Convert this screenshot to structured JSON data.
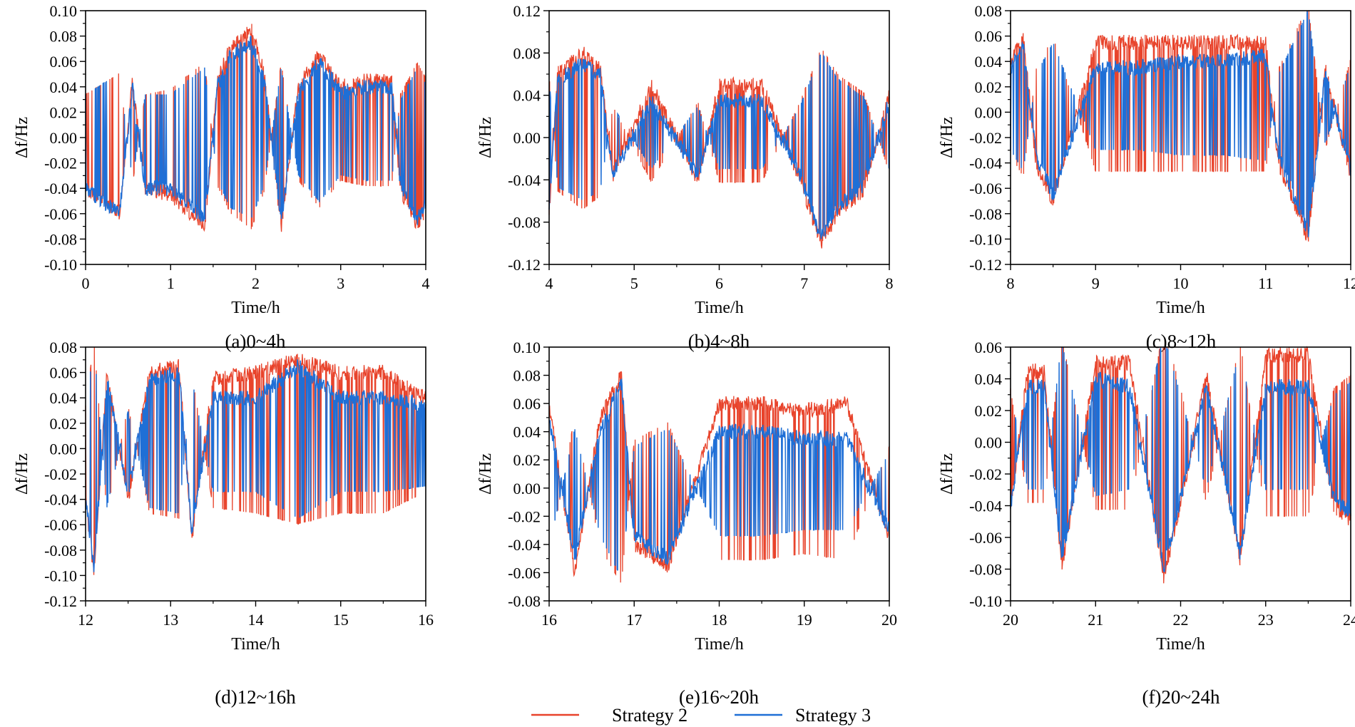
{
  "figure": {
    "legend": [
      {
        "label": "Strategy 2",
        "color": "#e8432b"
      },
      {
        "label": "Strategy 3",
        "color": "#1f6fd6"
      }
    ]
  },
  "chart_data": [
    {
      "type": "line",
      "caption": "(a)0~4h",
      "xlabel": "Time/h",
      "ylabel": "Δf/Hz",
      "xlim": [
        0,
        4
      ],
      "ylim": [
        -0.1,
        0.1
      ],
      "xticks": [
        "0",
        "1",
        "2",
        "3",
        "4"
      ],
      "yticks": [
        "-0.10",
        "-0.08",
        "-0.06",
        "-0.04",
        "-0.02",
        "0.00",
        "0.02",
        "0.04",
        "0.06",
        "0.08",
        "0.10"
      ],
      "series": [
        {
          "name": "Strategy 2",
          "color": "#e8432b",
          "x": [
            0,
            0.4,
            0.55,
            0.7,
            1.0,
            1.4,
            1.55,
            1.7,
            1.95,
            2.1,
            2.3,
            2.5,
            2.75,
            3.0,
            3.3,
            3.6,
            3.7,
            3.9,
            4.0
          ],
          "values": [
            -0.04,
            -0.06,
            0.045,
            -0.04,
            -0.045,
            -0.07,
            0.045,
            0.07,
            0.085,
            0.05,
            -0.07,
            0.04,
            0.065,
            0.04,
            0.045,
            0.045,
            -0.04,
            -0.07,
            -0.055
          ]
        },
        {
          "name": "Strategy 3",
          "color": "#1f6fd6",
          "x": [
            0,
            0.4,
            0.55,
            0.7,
            1.0,
            1.4,
            1.55,
            1.7,
            1.95,
            2.1,
            2.3,
            2.5,
            2.75,
            3.0,
            3.3,
            3.6,
            3.7,
            3.9,
            4.0
          ],
          "values": [
            -0.04,
            -0.06,
            0.04,
            -0.04,
            -0.04,
            -0.065,
            0.04,
            0.065,
            0.075,
            0.045,
            -0.065,
            0.035,
            0.06,
            0.035,
            0.04,
            0.04,
            -0.035,
            -0.065,
            -0.05
          ]
        }
      ]
    },
    {
      "type": "line",
      "caption": "(b)4~8h",
      "xlabel": "Time/h",
      "ylabel": "Δf/Hz",
      "xlim": [
        4,
        8
      ],
      "ylim": [
        -0.12,
        0.12
      ],
      "xticks": [
        "4",
        "5",
        "6",
        "7",
        "8"
      ],
      "yticks": [
        "-0.12",
        "-0.08",
        "-0.04",
        "0.00",
        "0.04",
        "0.08",
        "0.12"
      ],
      "series": [
        {
          "name": "Strategy 2",
          "color": "#e8432b",
          "x": [
            4.0,
            4.1,
            4.4,
            4.6,
            4.75,
            5.2,
            5.75,
            6.0,
            6.5,
            6.95,
            7.2,
            7.4,
            7.7,
            8.0
          ],
          "values": [
            -0.07,
            0.06,
            0.08,
            0.065,
            -0.035,
            0.05,
            -0.04,
            0.05,
            0.05,
            -0.04,
            -0.1,
            -0.07,
            -0.05,
            0.04
          ]
        },
        {
          "name": "Strategy 3",
          "color": "#1f6fd6",
          "x": [
            4.0,
            4.1,
            4.4,
            4.6,
            4.75,
            5.2,
            5.75,
            6.0,
            6.5,
            6.95,
            7.2,
            7.4,
            7.7,
            8.0
          ],
          "values": [
            -0.065,
            0.055,
            0.07,
            0.06,
            -0.035,
            0.035,
            -0.035,
            0.035,
            0.035,
            -0.035,
            -0.095,
            -0.065,
            -0.045,
            0.035
          ]
        }
      ]
    },
    {
      "type": "line",
      "caption": "(c)8~12h",
      "xlabel": "Time/h",
      "ylabel": "Δf/Hz",
      "xlim": [
        8,
        12
      ],
      "ylim": [
        -0.12,
        0.08
      ],
      "xticks": [
        "8",
        "9",
        "10",
        "11",
        "12"
      ],
      "yticks": [
        "-0.12",
        "-0.10",
        "-0.08",
        "-0.06",
        "-0.04",
        "-0.02",
        "0.00",
        "0.02",
        "0.04",
        "0.06",
        "0.08"
      ],
      "series": [
        {
          "name": "Strategy 2",
          "color": "#e8432b",
          "x": [
            8.0,
            8.15,
            8.3,
            8.5,
            9.0,
            9.5,
            10.0,
            10.5,
            11.0,
            11.15,
            11.5,
            11.7,
            12.0
          ],
          "values": [
            0.04,
            0.06,
            -0.04,
            -0.07,
            0.055,
            0.055,
            0.055,
            0.055,
            0.055,
            -0.04,
            -0.1,
            0.035,
            -0.05
          ]
        },
        {
          "name": "Strategy 3",
          "color": "#1f6fd6",
          "x": [
            8.0,
            8.15,
            8.3,
            8.5,
            9.0,
            9.5,
            10.0,
            10.5,
            11.0,
            11.15,
            11.5,
            11.7,
            12.0
          ],
          "values": [
            0.035,
            0.055,
            -0.035,
            -0.065,
            0.035,
            0.035,
            0.04,
            0.04,
            0.045,
            -0.035,
            -0.095,
            0.03,
            -0.045
          ]
        }
      ]
    },
    {
      "type": "line",
      "caption": "(d)12~16h",
      "xlabel": "Time/h",
      "ylabel": "Δf/Hz",
      "xlim": [
        12,
        16
      ],
      "ylim": [
        -0.12,
        0.08
      ],
      "xticks": [
        "12",
        "13",
        "14",
        "15",
        "16"
      ],
      "yticks": [
        "-0.12",
        "-0.10",
        "-0.08",
        "-0.06",
        "-0.04",
        "-0.02",
        "0.00",
        "0.02",
        "0.04",
        "0.06",
        "0.08"
      ],
      "series": [
        {
          "name": "Strategy 2",
          "color": "#e8432b",
          "x": [
            12.0,
            12.1,
            12.25,
            12.5,
            12.75,
            13.1,
            13.25,
            13.5,
            14.0,
            14.5,
            15.0,
            15.5,
            16.0
          ],
          "values": [
            -0.04,
            -0.1,
            0.06,
            -0.04,
            0.06,
            0.065,
            -0.07,
            0.055,
            0.06,
            0.07,
            0.06,
            0.06,
            0.04
          ]
        },
        {
          "name": "Strategy 3",
          "color": "#1f6fd6",
          "x": [
            12.0,
            12.1,
            12.25,
            12.5,
            12.75,
            13.1,
            13.25,
            13.5,
            14.0,
            14.5,
            15.0,
            15.5,
            16.0
          ],
          "values": [
            -0.04,
            -0.095,
            0.055,
            -0.035,
            0.055,
            0.06,
            -0.065,
            0.04,
            0.04,
            0.065,
            0.04,
            0.04,
            0.035
          ]
        }
      ]
    },
    {
      "type": "line",
      "caption": "(e)16~20h",
      "xlabel": "Time/h",
      "ylabel": "Δf/Hz",
      "xlim": [
        16,
        20
      ],
      "ylim": [
        -0.08,
        0.1
      ],
      "xticks": [
        "16",
        "17",
        "18",
        "19",
        "20"
      ],
      "yticks": [
        "-0.08",
        "-0.06",
        "-0.04",
        "-0.02",
        "0.00",
        "0.02",
        "0.04",
        "0.06",
        "0.08",
        "0.10"
      ],
      "series": [
        {
          "name": "Strategy 2",
          "color": "#e8432b",
          "x": [
            16.0,
            16.3,
            16.6,
            16.85,
            17.0,
            17.4,
            18.0,
            18.5,
            19.0,
            19.5,
            20.0
          ],
          "values": [
            0.06,
            -0.06,
            0.05,
            0.08,
            -0.04,
            -0.055,
            0.06,
            0.06,
            0.055,
            0.06,
            -0.035
          ]
        },
        {
          "name": "Strategy 3",
          "color": "#1f6fd6",
          "x": [
            16.0,
            16.3,
            16.6,
            16.85,
            17.0,
            17.4,
            18.0,
            18.5,
            19.0,
            19.5,
            20.0
          ],
          "values": [
            0.05,
            -0.05,
            0.04,
            0.075,
            -0.035,
            -0.05,
            0.04,
            0.04,
            0.035,
            0.035,
            -0.03
          ]
        }
      ]
    },
    {
      "type": "line",
      "caption": "(f)20~24h",
      "xlabel": "Time/h",
      "ylabel": "Δf/Hz",
      "xlim": [
        20,
        24
      ],
      "ylim": [
        -0.1,
        0.06
      ],
      "xticks": [
        "20",
        "21",
        "22",
        "23",
        "24"
      ],
      "yticks": [
        "-0.10",
        "-0.08",
        "-0.06",
        "-0.04",
        "-0.02",
        "0.00",
        "0.02",
        "0.04",
        "0.06"
      ],
      "series": [
        {
          "name": "Strategy 2",
          "color": "#e8432b",
          "x": [
            20.0,
            20.2,
            20.4,
            20.6,
            21.0,
            21.4,
            21.8,
            22.0,
            22.3,
            22.7,
            23.0,
            23.5,
            23.8,
            24.0
          ],
          "values": [
            -0.04,
            0.045,
            0.045,
            -0.08,
            0.05,
            0.05,
            -0.085,
            -0.04,
            0.045,
            -0.075,
            0.055,
            0.055,
            -0.04,
            -0.05
          ]
        },
        {
          "name": "Strategy 3",
          "color": "#1f6fd6",
          "x": [
            20.0,
            20.2,
            20.4,
            20.6,
            21.0,
            21.4,
            21.8,
            22.0,
            22.3,
            22.7,
            23.0,
            23.5,
            23.8,
            24.0
          ],
          "values": [
            -0.04,
            0.035,
            0.035,
            -0.075,
            0.04,
            0.035,
            -0.08,
            -0.035,
            0.035,
            -0.07,
            0.035,
            0.035,
            -0.035,
            -0.045
          ]
        }
      ]
    }
  ]
}
